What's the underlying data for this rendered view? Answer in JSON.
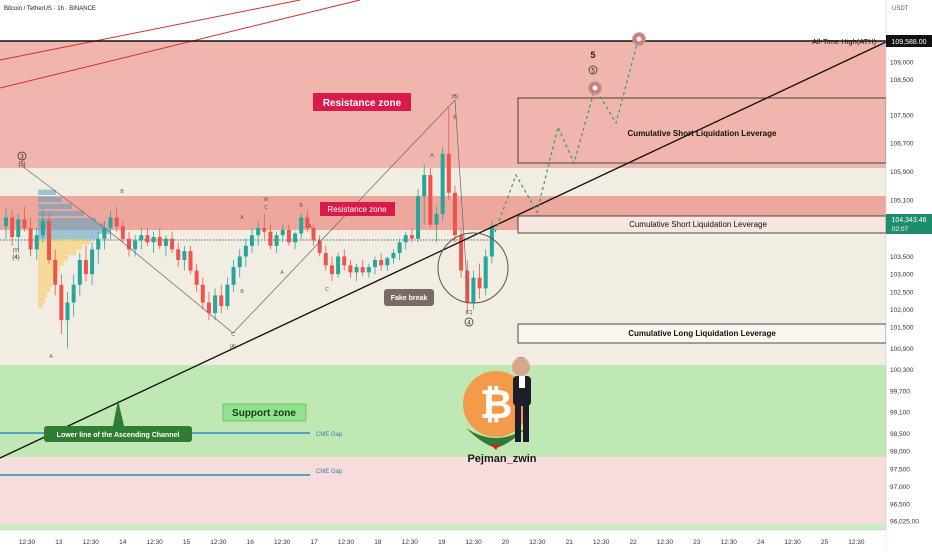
{
  "header": {
    "symbol": "Bitcoin / TetherUS · 1h · BINANCE",
    "currency": "USDT"
  },
  "price_tag": {
    "price": "104,343.46",
    "countdown": "02:07"
  },
  "ath": {
    "label": "All-Time High(ATH)",
    "value": "109,588.00"
  },
  "annotations": {
    "resistance_zone_big": "Resistance zone",
    "resistance_zone_small": "Resistance zone",
    "support_zone": "Support zone",
    "channel_label": "Lower line of the Ascending Channel",
    "fake_break": "Fake break",
    "short_liq_1": "Cumulative Short Liquidation Leverage",
    "short_liq_2": "Cumulative Short Liquidation Leverage",
    "long_liq": "Cumulative Long Liquidation Leverage",
    "cme_gap_1": "CME Gap",
    "cme_gap_2": "CME Gap",
    "author": "Pejman_zwin",
    "wave_5_top": "5",
    "wave_5_circle": "5",
    "wave_4_circle": "4",
    "wave_3_left": "3",
    "wave_5_left": "(5)",
    "wave_y_left": "(Y)",
    "wave_4_left": "(4)",
    "wave_b_paren": "(B)",
    "wave_a_paren": "(A)",
    "wave_c_paren": "(C)",
    "wave_A_left": "A",
    "wave_B_left": "B",
    "wave_C_mid": "C",
    "wave_A_mid": "A",
    "wave_B_mid": "B",
    "wave_W": "W",
    "wave_C2": "C",
    "wave_A2": "A",
    "wave_B2": "B",
    "wave_A3": "A",
    "wave_C3": "C",
    "wave_B3": "B",
    "wave_A4": "A"
  },
  "colors": {
    "resistance": "#f0b0a8",
    "resistance_dark": "#ea9a90",
    "support": "#b9e6b0",
    "neutral": "#f1ede2",
    "up_candle": "#26a69a",
    "down_candle": "#ef5350",
    "label_red": "#d81b4a",
    "label_green": "#7ed27a"
  },
  "chart_data": {
    "type": "candlestick",
    "title": "Bitcoin / TetherUS · 1h · BINANCE",
    "y_axis": {
      "unit": "USDT",
      "ticks": [
        109000,
        108500,
        107500,
        106700,
        105900,
        105100,
        104300,
        103500,
        103000,
        102500,
        102000,
        101500,
        100900,
        100300,
        99700,
        99100,
        98500,
        98000,
        97500,
        97000,
        96500,
        96025
      ],
      "tick_labels": [
        "109,000",
        "108,500",
        "107,500",
        "106,700",
        "105,900",
        "105,100",
        "104,300",
        "103,500",
        "103,000",
        "102,500",
        "102,000",
        "101,500",
        "100,900",
        "100,300",
        "99,700",
        "99,100",
        "98,500",
        "98,000",
        "97,500",
        "97,000",
        "96,500",
        "96,025.00"
      ]
    },
    "x_axis": {
      "tick_labels": [
        "12:30",
        "13",
        "12:30",
        "14",
        "12:30",
        "15",
        "12:30",
        "16",
        "12:30",
        "17",
        "12:30",
        "18",
        "12:30",
        "19",
        "12:30",
        "20",
        "12:30",
        "21",
        "12:30",
        "22",
        "12:30",
        "23",
        "12:30",
        "24",
        "12:30",
        "25",
        "12:30"
      ]
    },
    "zones": [
      {
        "name": "Resistance zone",
        "low": 105900,
        "high": 109588
      },
      {
        "name": "Resistance zone",
        "low": 104550,
        "high": 105100
      },
      {
        "name": "Support zone",
        "low": 97800,
        "high": 100150
      },
      {
        "name": "Cumulative Short Liquidation Leverage",
        "low": 105950,
        "high": 107850
      },
      {
        "name": "Cumulative Short Liquidation Leverage",
        "low": 104050,
        "high": 104400
      },
      {
        "name": "Cumulative Long Liquidation Leverage",
        "low": 100900,
        "high": 101200
      }
    ],
    "levels": [
      {
        "name": "All-Time High(ATH)",
        "value": 109588
      }
    ],
    "candles": [
      {
        "x": 1,
        "o": 104350,
        "h": 104850,
        "l": 104000,
        "c": 104600
      },
      {
        "x": 2,
        "o": 104600,
        "h": 104800,
        "l": 103800,
        "c": 104050
      },
      {
        "x": 3,
        "o": 104050,
        "h": 104700,
        "l": 103700,
        "c": 104550
      },
      {
        "x": 4,
        "o": 104550,
        "h": 104900,
        "l": 104200,
        "c": 104300
      },
      {
        "x": 5,
        "o": 104300,
        "h": 104600,
        "l": 103500,
        "c": 103700
      },
      {
        "x": 6,
        "o": 103700,
        "h": 104300,
        "l": 103400,
        "c": 104100
      },
      {
        "x": 7,
        "o": 104100,
        "h": 104800,
        "l": 103900,
        "c": 104500
      },
      {
        "x": 8,
        "o": 104500,
        "h": 104700,
        "l": 103300,
        "c": 103400
      },
      {
        "x": 9,
        "o": 103400,
        "h": 103700,
        "l": 102400,
        "c": 102700
      },
      {
        "x": 10,
        "o": 102700,
        "h": 103000,
        "l": 101300,
        "c": 101700
      },
      {
        "x": 11,
        "o": 101700,
        "h": 102500,
        "l": 100900,
        "c": 102200
      },
      {
        "x": 12,
        "o": 102200,
        "h": 103000,
        "l": 101800,
        "c": 102700
      },
      {
        "x": 13,
        "o": 102700,
        "h": 103600,
        "l": 102400,
        "c": 103400
      },
      {
        "x": 14,
        "o": 103400,
        "h": 103800,
        "l": 102800,
        "c": 103000
      },
      {
        "x": 15,
        "o": 103000,
        "h": 103900,
        "l": 102700,
        "c": 103700
      },
      {
        "x": 16,
        "o": 103700,
        "h": 104200,
        "l": 103300,
        "c": 104000
      },
      {
        "x": 17,
        "o": 104000,
        "h": 104500,
        "l": 103700,
        "c": 104300
      },
      {
        "x": 18,
        "o": 104300,
        "h": 104800,
        "l": 104000,
        "c": 104600
      },
      {
        "x": 19,
        "o": 104600,
        "h": 104900,
        "l": 104200,
        "c": 104350
      },
      {
        "x": 20,
        "o": 104350,
        "h": 104500,
        "l": 103900,
        "c": 104000
      },
      {
        "x": 21,
        "o": 104000,
        "h": 104200,
        "l": 103500,
        "c": 103700
      },
      {
        "x": 22,
        "o": 103700,
        "h": 104100,
        "l": 103500,
        "c": 103950
      },
      {
        "x": 23,
        "o": 103950,
        "h": 104300,
        "l": 103700,
        "c": 104100
      },
      {
        "x": 24,
        "o": 104100,
        "h": 104300,
        "l": 103800,
        "c": 103900
      },
      {
        "x": 25,
        "o": 103900,
        "h": 104200,
        "l": 103600,
        "c": 104050
      },
      {
        "x": 26,
        "o": 104050,
        "h": 104300,
        "l": 103700,
        "c": 103800
      },
      {
        "x": 27,
        "o": 103800,
        "h": 104100,
        "l": 103500,
        "c": 104000
      },
      {
        "x": 28,
        "o": 104000,
        "h": 104200,
        "l": 103600,
        "c": 103700
      },
      {
        "x": 29,
        "o": 103700,
        "h": 103900,
        "l": 103200,
        "c": 103400
      },
      {
        "x": 30,
        "o": 103400,
        "h": 103800,
        "l": 103100,
        "c": 103650
      },
      {
        "x": 31,
        "o": 103650,
        "h": 103800,
        "l": 103000,
        "c": 103100
      },
      {
        "x": 32,
        "o": 103100,
        "h": 103300,
        "l": 102500,
        "c": 102700
      },
      {
        "x": 33,
        "o": 102700,
        "h": 102900,
        "l": 102000,
        "c": 102200
      },
      {
        "x": 34,
        "o": 102200,
        "h": 102500,
        "l": 101700,
        "c": 101900
      },
      {
        "x": 35,
        "o": 101900,
        "h": 102600,
        "l": 101700,
        "c": 102400
      },
      {
        "x": 36,
        "o": 102400,
        "h": 102700,
        "l": 101900,
        "c": 102100
      },
      {
        "x": 37,
        "o": 102100,
        "h": 102900,
        "l": 102000,
        "c": 102700
      },
      {
        "x": 38,
        "o": 102700,
        "h": 103400,
        "l": 102500,
        "c": 103200
      },
      {
        "x": 39,
        "o": 103200,
        "h": 103700,
        "l": 102900,
        "c": 103500
      },
      {
        "x": 40,
        "o": 103500,
        "h": 104000,
        "l": 103200,
        "c": 103800
      },
      {
        "x": 41,
        "o": 103800,
        "h": 104300,
        "l": 103600,
        "c": 104100
      },
      {
        "x": 42,
        "o": 104100,
        "h": 104500,
        "l": 103800,
        "c": 104300
      },
      {
        "x": 43,
        "o": 104300,
        "h": 104700,
        "l": 104000,
        "c": 104200
      },
      {
        "x": 44,
        "o": 104200,
        "h": 104400,
        "l": 103700,
        "c": 103800
      },
      {
        "x": 45,
        "o": 103800,
        "h": 104200,
        "l": 103600,
        "c": 104100
      },
      {
        "x": 46,
        "o": 104100,
        "h": 104400,
        "l": 103900,
        "c": 104250
      },
      {
        "x": 47,
        "o": 104250,
        "h": 104400,
        "l": 103800,
        "c": 103900
      },
      {
        "x": 48,
        "o": 103900,
        "h": 104200,
        "l": 103700,
        "c": 104150
      },
      {
        "x": 49,
        "o": 104150,
        "h": 104700,
        "l": 104000,
        "c": 104600
      },
      {
        "x": 50,
        "o": 104600,
        "h": 104800,
        "l": 104200,
        "c": 104300
      },
      {
        "x": 51,
        "o": 104300,
        "h": 104400,
        "l": 103800,
        "c": 103950
      },
      {
        "x": 52,
        "o": 103950,
        "h": 104100,
        "l": 103500,
        "c": 103600
      },
      {
        "x": 53,
        "o": 103600,
        "h": 103800,
        "l": 103100,
        "c": 103250
      },
      {
        "x": 54,
        "o": 103250,
        "h": 103500,
        "l": 102800,
        "c": 103000
      },
      {
        "x": 55,
        "o": 103000,
        "h": 103600,
        "l": 102900,
        "c": 103500
      },
      {
        "x": 56,
        "o": 103500,
        "h": 103700,
        "l": 103100,
        "c": 103250
      },
      {
        "x": 57,
        "o": 103250,
        "h": 103400,
        "l": 102900,
        "c": 103050
      },
      {
        "x": 58,
        "o": 103050,
        "h": 103300,
        "l": 102800,
        "c": 103200
      },
      {
        "x": 59,
        "o": 103200,
        "h": 103400,
        "l": 102950,
        "c": 103050
      },
      {
        "x": 60,
        "o": 103050,
        "h": 103300,
        "l": 102900,
        "c": 103200
      },
      {
        "x": 61,
        "o": 103200,
        "h": 103500,
        "l": 103000,
        "c": 103400
      },
      {
        "x": 62,
        "o": 103400,
        "h": 103600,
        "l": 103100,
        "c": 103250
      },
      {
        "x": 63,
        "o": 103250,
        "h": 103500,
        "l": 103100,
        "c": 103450
      },
      {
        "x": 64,
        "o": 103450,
        "h": 103700,
        "l": 103300,
        "c": 103600
      },
      {
        "x": 65,
        "o": 103600,
        "h": 104000,
        "l": 103400,
        "c": 103900
      },
      {
        "x": 66,
        "o": 103900,
        "h": 104200,
        "l": 103700,
        "c": 104100
      },
      {
        "x": 67,
        "o": 104100,
        "h": 104300,
        "l": 103900,
        "c": 104000
      },
      {
        "x": 68,
        "o": 104000,
        "h": 105400,
        "l": 103900,
        "c": 105200
      },
      {
        "x": 69,
        "o": 105200,
        "h": 106100,
        "l": 104400,
        "c": 105800
      },
      {
        "x": 70,
        "o": 105800,
        "h": 106000,
        "l": 104300,
        "c": 104400
      },
      {
        "x": 71,
        "o": 104400,
        "h": 104900,
        "l": 103900,
        "c": 104700
      },
      {
        "x": 72,
        "o": 104700,
        "h": 106600,
        "l": 104500,
        "c": 106400
      },
      {
        "x": 73,
        "o": 106400,
        "h": 107700,
        "l": 105100,
        "c": 105300
      },
      {
        "x": 74,
        "o": 105300,
        "h": 105500,
        "l": 103900,
        "c": 104100
      },
      {
        "x": 75,
        "o": 104100,
        "h": 104300,
        "l": 102900,
        "c": 103100
      },
      {
        "x": 76,
        "o": 103100,
        "h": 103400,
        "l": 101900,
        "c": 102200
      },
      {
        "x": 77,
        "o": 102200,
        "h": 103100,
        "l": 102000,
        "c": 102900
      },
      {
        "x": 78,
        "o": 102900,
        "h": 103300,
        "l": 102300,
        "c": 102600
      },
      {
        "x": 79,
        "o": 102600,
        "h": 103700,
        "l": 102400,
        "c": 103500
      },
      {
        "x": 80,
        "o": 103500,
        "h": 104500,
        "l": 103300,
        "c": 104343
      }
    ]
  }
}
